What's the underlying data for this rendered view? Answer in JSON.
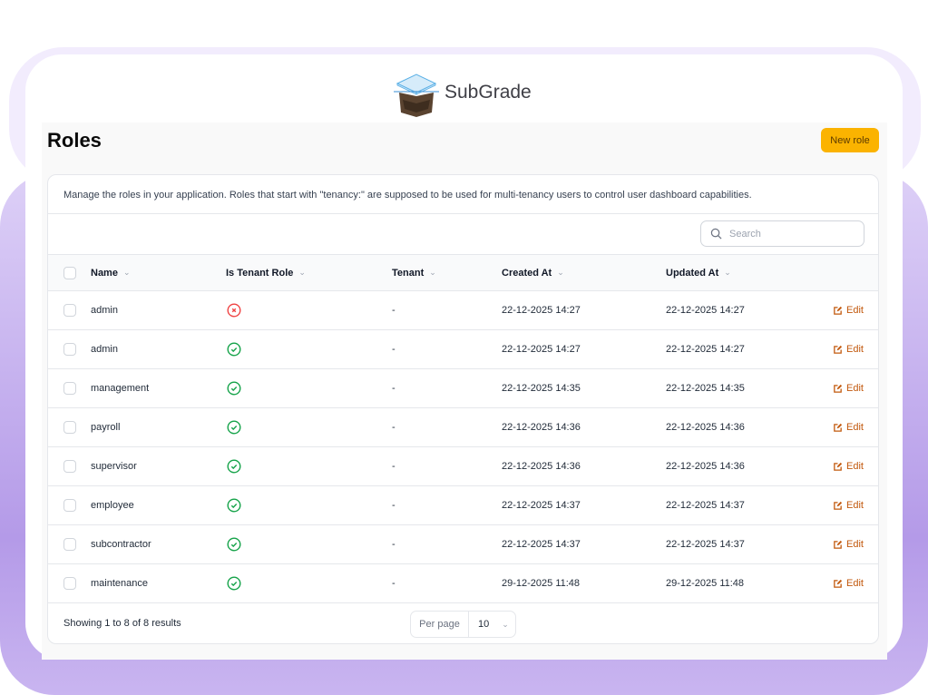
{
  "brand": {
    "name": "SubGrade"
  },
  "page": {
    "title": "Roles",
    "new_button": "New role"
  },
  "description": "Manage the roles in your application. Roles that start with \"tenancy:\" are supposed to be used for multi-tenancy users to control user dashboard capabilities.",
  "search": {
    "placeholder": "Search"
  },
  "columns": [
    "Name",
    "Is Tenant Role",
    "Tenant",
    "Created At",
    "Updated At"
  ],
  "rows": [
    {
      "name": "admin",
      "is_tenant_role": false,
      "tenant": "-",
      "created": "22-12-2025 14:27",
      "updated": "22-12-2025 14:27",
      "action": "Edit"
    },
    {
      "name": "admin",
      "is_tenant_role": true,
      "tenant": "-",
      "created": "22-12-2025 14:27",
      "updated": "22-12-2025 14:27",
      "action": "Edit"
    },
    {
      "name": "management",
      "is_tenant_role": true,
      "tenant": "-",
      "created": "22-12-2025 14:35",
      "updated": "22-12-2025 14:35",
      "action": "Edit"
    },
    {
      "name": "payroll",
      "is_tenant_role": true,
      "tenant": "-",
      "created": "22-12-2025 14:36",
      "updated": "22-12-2025 14:36",
      "action": "Edit"
    },
    {
      "name": "supervisor",
      "is_tenant_role": true,
      "tenant": "-",
      "created": "22-12-2025 14:36",
      "updated": "22-12-2025 14:36",
      "action": "Edit"
    },
    {
      "name": "employee",
      "is_tenant_role": true,
      "tenant": "-",
      "created": "22-12-2025 14:37",
      "updated": "22-12-2025 14:37",
      "action": "Edit"
    },
    {
      "name": "subcontractor",
      "is_tenant_role": true,
      "tenant": "-",
      "created": "22-12-2025 14:37",
      "updated": "22-12-2025 14:37",
      "action": "Edit"
    },
    {
      "name": "maintenance",
      "is_tenant_role": true,
      "tenant": "-",
      "created": "29-12-2025 11:48",
      "updated": "29-12-2025 11:48",
      "action": "Edit"
    }
  ],
  "footer": {
    "summary": "Showing 1 to 8 of 8 results",
    "per_page_label": "Per page",
    "per_page_value": "10"
  },
  "colors": {
    "accent": "#fbb300",
    "edit": "#c2580c",
    "true": "#16a34a",
    "false": "#ef4444"
  }
}
